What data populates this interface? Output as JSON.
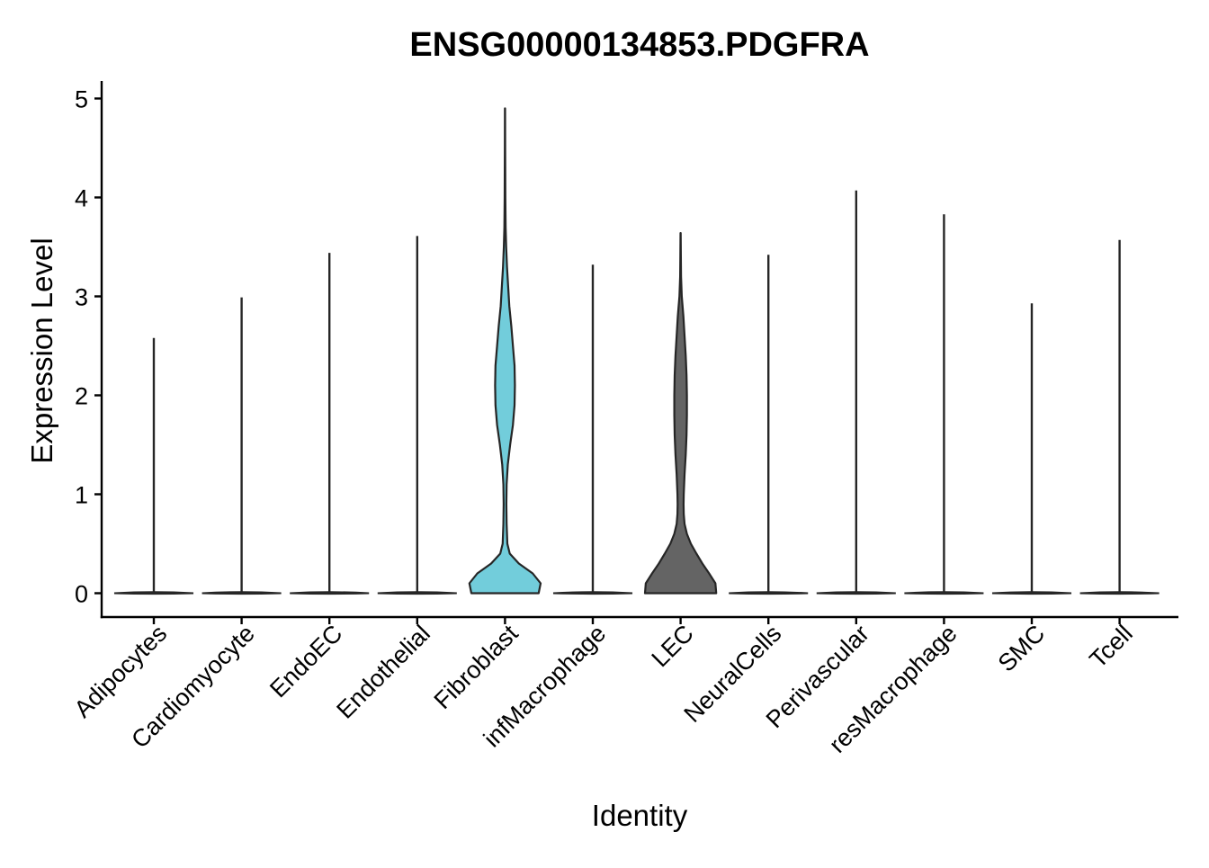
{
  "chart_data": {
    "type": "violin",
    "title": "ENSG00000134853.PDGFRA",
    "xlabel": "Identity",
    "ylabel": "Expression Level",
    "ylim": [
      0,
      5
    ],
    "y_ticks": [
      "0",
      "1",
      "2",
      "3",
      "4",
      "5"
    ],
    "categories": [
      "Adipocytes",
      "Cardiomyocyte",
      "EndoEC",
      "Endothelial",
      "Fibroblast",
      "infMacrophage",
      "LEC",
      "NeuralCells",
      "Perivascular",
      "resMacrophage",
      "SMC",
      "Tcell"
    ],
    "max_values": [
      2.58,
      2.99,
      3.44,
      3.61,
      4.9,
      3.32,
      3.64,
      3.42,
      4.07,
      3.83,
      2.93,
      3.57
    ],
    "fill_colors": [
      "#000000",
      "#000000",
      "#000000",
      "#000000",
      "#72CDDB",
      "#000000",
      "#646464",
      "#000000",
      "#000000",
      "#000000",
      "#000000",
      "#000000"
    ],
    "densities": {
      "Fibroblast": [
        [
          0,
          0.85
        ],
        [
          0.1,
          0.9
        ],
        [
          0.2,
          0.7
        ],
        [
          0.3,
          0.35
        ],
        [
          0.4,
          0.12
        ],
        [
          0.5,
          0.06
        ],
        [
          0.7,
          0.04
        ],
        [
          0.9,
          0.035
        ],
        [
          1.1,
          0.04
        ],
        [
          1.3,
          0.07
        ],
        [
          1.5,
          0.13
        ],
        [
          1.7,
          0.2
        ],
        [
          1.9,
          0.24
        ],
        [
          2.1,
          0.25
        ],
        [
          2.3,
          0.24
        ],
        [
          2.5,
          0.2
        ],
        [
          2.7,
          0.16
        ],
        [
          2.9,
          0.11
        ],
        [
          3.1,
          0.08
        ],
        [
          3.3,
          0.05
        ],
        [
          3.5,
          0.03
        ],
        [
          3.7,
          0.015
        ],
        [
          4.0,
          0.008
        ],
        [
          4.5,
          0.004
        ],
        [
          4.9,
          0.002
        ]
      ],
      "LEC": [
        [
          0,
          0.9
        ],
        [
          0.1,
          0.88
        ],
        [
          0.2,
          0.72
        ],
        [
          0.3,
          0.55
        ],
        [
          0.4,
          0.4
        ],
        [
          0.5,
          0.26
        ],
        [
          0.6,
          0.16
        ],
        [
          0.7,
          0.1
        ],
        [
          0.8,
          0.08
        ],
        [
          0.9,
          0.075
        ],
        [
          1.0,
          0.08
        ],
        [
          1.2,
          0.1
        ],
        [
          1.4,
          0.13
        ],
        [
          1.6,
          0.15
        ],
        [
          1.8,
          0.16
        ],
        [
          2.0,
          0.16
        ],
        [
          2.2,
          0.15
        ],
        [
          2.4,
          0.13
        ],
        [
          2.6,
          0.1
        ],
        [
          2.8,
          0.07
        ],
        [
          3.0,
          0.03
        ],
        [
          3.2,
          0.012
        ],
        [
          3.4,
          0.006
        ],
        [
          3.64,
          0.002
        ]
      ]
    }
  }
}
